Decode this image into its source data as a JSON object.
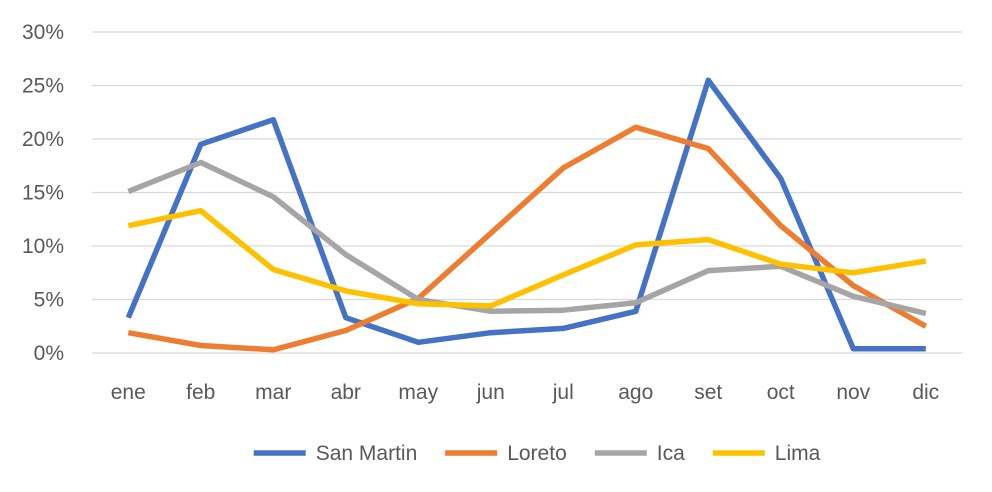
{
  "chart_data": {
    "type": "line",
    "categories": [
      "ene",
      "feb",
      "mar",
      "abr",
      "may",
      "jun",
      "jul",
      "ago",
      "set",
      "oct",
      "nov",
      "dic"
    ],
    "ylim": [
      0,
      30
    ],
    "y_ticks": [
      {
        "value": 0,
        "label": "0%"
      },
      {
        "value": 5,
        "label": "5%"
      },
      {
        "value": 10,
        "label": "10%"
      },
      {
        "value": 15,
        "label": "15%"
      },
      {
        "value": 20,
        "label": "20%"
      },
      {
        "value": 25,
        "label": "25%"
      },
      {
        "value": 30,
        "label": "30%"
      }
    ],
    "grid": true,
    "legend_position": "bottom",
    "series": [
      {
        "name": "San Martin",
        "color": "#4472C4",
        "values": [
          3.3,
          19.5,
          21.8,
          3.3,
          1.0,
          1.9,
          2.3,
          3.9,
          25.5,
          16.3,
          0.4,
          0.4
        ]
      },
      {
        "name": "Loreto",
        "color": "#ED7D31",
        "values": [
          1.9,
          0.7,
          0.3,
          2.1,
          5.1,
          11.2,
          17.3,
          21.1,
          19.1,
          11.9,
          6.3,
          2.5
        ]
      },
      {
        "name": "Ica",
        "color": "#A5A5A5",
        "values": [
          15.1,
          17.8,
          14.6,
          9.2,
          5.0,
          3.9,
          4.0,
          4.7,
          7.7,
          8.1,
          5.3,
          3.7
        ]
      },
      {
        "name": "Lima",
        "color": "#FFC000",
        "values": [
          11.9,
          13.3,
          7.8,
          5.8,
          4.6,
          4.4,
          7.3,
          10.1,
          10.6,
          8.3,
          7.5,
          8.6
        ]
      }
    ]
  }
}
